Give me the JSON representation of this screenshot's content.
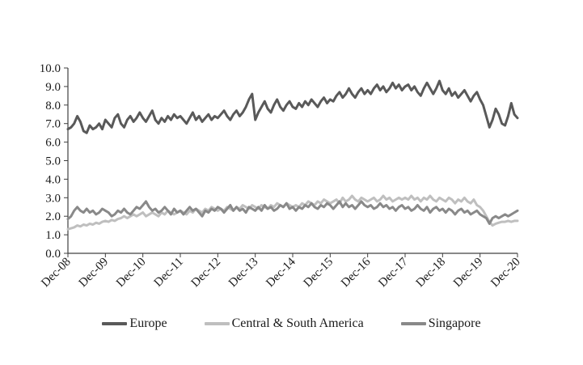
{
  "chart_data": {
    "type": "line",
    "title": "",
    "xlabel": "",
    "ylabel": "",
    "x_unit": "monthly",
    "x_range": [
      "Dec-08",
      "Dec-20"
    ],
    "x_tick_labels": [
      "Dec-08",
      "Dec-09",
      "Dec-10",
      "Dec-11",
      "Dec-12",
      "Dec-13",
      "Dec-14",
      "Dec-15",
      "Dec-16",
      "Dec-17",
      "Dec-18",
      "Dec-19",
      "Dec-20"
    ],
    "months_per_tick": 12,
    "ylim": [
      0,
      10
    ],
    "y_tick_step": 1,
    "y_tick_labels": [
      "0.0",
      "1.0",
      "2.0",
      "3.0",
      "4.0",
      "5.0",
      "6.0",
      "7.0",
      "8.0",
      "9.0",
      "10.0"
    ],
    "grid": false,
    "legend_position": "bottom",
    "axis_color": "#404040",
    "series": [
      {
        "name": "Europe",
        "color": "#595959",
        "values": [
          6.7,
          6.8,
          7.0,
          7.4,
          7.1,
          6.6,
          6.5,
          6.9,
          6.7,
          6.8,
          7.0,
          6.7,
          7.2,
          7.0,
          6.8,
          7.3,
          7.5,
          7.0,
          6.8,
          7.2,
          7.4,
          7.1,
          7.3,
          7.6,
          7.3,
          7.1,
          7.4,
          7.7,
          7.2,
          7.0,
          7.3,
          7.1,
          7.4,
          7.2,
          7.5,
          7.3,
          7.4,
          7.2,
          7.0,
          7.3,
          7.6,
          7.2,
          7.4,
          7.1,
          7.3,
          7.5,
          7.2,
          7.4,
          7.3,
          7.5,
          7.7,
          7.4,
          7.2,
          7.5,
          7.7,
          7.4,
          7.6,
          7.9,
          8.3,
          8.6,
          7.2,
          7.6,
          7.9,
          8.2,
          7.8,
          7.6,
          8.0,
          8.3,
          7.9,
          7.7,
          8.0,
          8.2,
          7.9,
          7.8,
          8.1,
          7.9,
          8.2,
          8.0,
          8.3,
          8.1,
          7.9,
          8.2,
          8.4,
          8.1,
          8.3,
          8.2,
          8.5,
          8.7,
          8.4,
          8.6,
          8.9,
          8.6,
          8.4,
          8.7,
          8.9,
          8.6,
          8.8,
          8.6,
          8.9,
          9.1,
          8.8,
          9.0,
          8.7,
          8.9,
          9.2,
          8.9,
          9.1,
          8.8,
          9.0,
          9.1,
          8.8,
          9.0,
          8.7,
          8.5,
          8.9,
          9.2,
          8.9,
          8.6,
          8.9,
          9.3,
          8.8,
          8.6,
          8.9,
          8.5,
          8.7,
          8.4,
          8.6,
          8.8,
          8.5,
          8.2,
          8.5,
          8.7,
          8.3,
          8.0,
          7.4,
          6.8,
          7.2,
          7.8,
          7.5,
          7.0,
          6.9,
          7.4,
          8.1,
          7.5,
          7.3
        ]
      },
      {
        "name": "Central & South America",
        "color": "#bfbfbf",
        "values": [
          1.3,
          1.35,
          1.4,
          1.5,
          1.45,
          1.55,
          1.5,
          1.6,
          1.55,
          1.65,
          1.6,
          1.7,
          1.75,
          1.7,
          1.8,
          1.75,
          1.85,
          1.9,
          2.0,
          1.9,
          2.0,
          2.1,
          2.0,
          2.1,
          2.2,
          2.0,
          2.1,
          2.2,
          2.1,
          2.0,
          2.2,
          2.1,
          2.3,
          2.2,
          2.1,
          2.2,
          2.3,
          2.2,
          2.1,
          2.3,
          2.2,
          2.4,
          2.3,
          2.2,
          2.4,
          2.3,
          2.5,
          2.4,
          2.3,
          2.4,
          2.3,
          2.5,
          2.4,
          2.3,
          2.5,
          2.4,
          2.6,
          2.5,
          2.4,
          2.6,
          2.5,
          2.4,
          2.6,
          2.5,
          2.4,
          2.6,
          2.5,
          2.7,
          2.6,
          2.5,
          2.7,
          2.6,
          2.5,
          2.6,
          2.5,
          2.7,
          2.6,
          2.8,
          2.7,
          2.6,
          2.8,
          2.7,
          2.9,
          2.8,
          2.7,
          2.8,
          2.9,
          2.7,
          3.0,
          2.8,
          2.9,
          3.1,
          2.9,
          2.8,
          3.0,
          2.9,
          2.8,
          2.9,
          3.0,
          2.8,
          2.9,
          3.1,
          2.9,
          3.0,
          2.8,
          2.9,
          3.0,
          2.9,
          3.0,
          2.9,
          3.1,
          2.9,
          3.0,
          2.8,
          3.0,
          2.9,
          3.1,
          2.9,
          2.8,
          3.0,
          2.9,
          2.8,
          3.0,
          2.9,
          2.7,
          2.9,
          2.8,
          3.0,
          2.8,
          2.7,
          2.9,
          2.6,
          2.5,
          2.3,
          2.0,
          1.7,
          1.5,
          1.6,
          1.65,
          1.7,
          1.7,
          1.75,
          1.7,
          1.75,
          1.75
        ]
      },
      {
        "name": "Singapore",
        "color": "#898989",
        "values": [
          1.85,
          2.0,
          2.3,
          2.5,
          2.3,
          2.2,
          2.4,
          2.2,
          2.3,
          2.1,
          2.2,
          2.4,
          2.3,
          2.2,
          2.0,
          2.1,
          2.3,
          2.2,
          2.4,
          2.2,
          2.1,
          2.3,
          2.5,
          2.4,
          2.6,
          2.8,
          2.5,
          2.3,
          2.4,
          2.2,
          2.3,
          2.5,
          2.3,
          2.1,
          2.4,
          2.2,
          2.3,
          2.1,
          2.3,
          2.5,
          2.3,
          2.4,
          2.2,
          2.0,
          2.3,
          2.2,
          2.4,
          2.3,
          2.5,
          2.4,
          2.2,
          2.4,
          2.6,
          2.3,
          2.5,
          2.3,
          2.4,
          2.2,
          2.5,
          2.4,
          2.3,
          2.5,
          2.3,
          2.6,
          2.4,
          2.5,
          2.3,
          2.4,
          2.6,
          2.5,
          2.7,
          2.4,
          2.5,
          2.3,
          2.5,
          2.4,
          2.6,
          2.5,
          2.7,
          2.5,
          2.4,
          2.6,
          2.5,
          2.7,
          2.6,
          2.4,
          2.6,
          2.8,
          2.5,
          2.7,
          2.5,
          2.6,
          2.4,
          2.6,
          2.8,
          2.6,
          2.5,
          2.6,
          2.4,
          2.5,
          2.7,
          2.5,
          2.6,
          2.4,
          2.5,
          2.3,
          2.5,
          2.6,
          2.4,
          2.5,
          2.3,
          2.4,
          2.6,
          2.4,
          2.3,
          2.5,
          2.2,
          2.4,
          2.5,
          2.3,
          2.4,
          2.2,
          2.4,
          2.3,
          2.1,
          2.3,
          2.4,
          2.2,
          2.3,
          2.1,
          2.2,
          2.3,
          2.1,
          2.0,
          1.9,
          1.6,
          1.9,
          2.0,
          1.9,
          2.0,
          2.1,
          2.0,
          2.1,
          2.2,
          2.3
        ]
      }
    ]
  },
  "legend": {
    "items": [
      {
        "label": "Europe",
        "color": "#595959"
      },
      {
        "label": "Central & South America",
        "color": "#bfbfbf"
      },
      {
        "label": "Singapore",
        "color": "#898989"
      }
    ]
  }
}
